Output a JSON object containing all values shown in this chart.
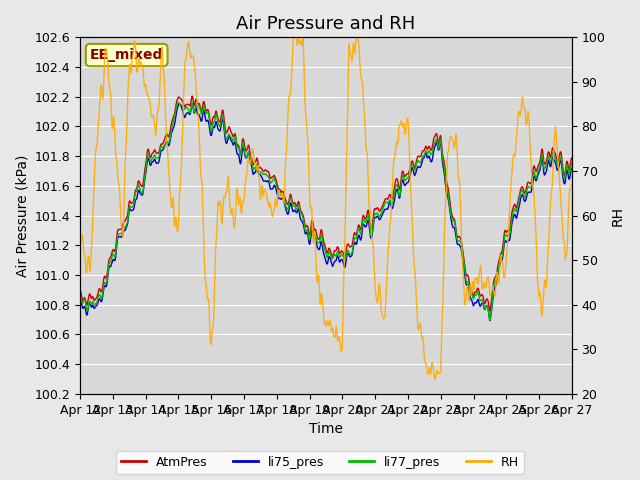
{
  "title": "Air Pressure and RH",
  "xlabel": "Time",
  "ylabel_left": "Air Pressure (kPa)",
  "ylabel_right": "RH",
  "annotation": "EE_mixed",
  "ylim_left": [
    100.2,
    102.6
  ],
  "ylim_right": [
    20,
    100
  ],
  "yticks_left": [
    100.2,
    100.4,
    100.6,
    100.8,
    101.0,
    101.2,
    101.4,
    101.6,
    101.8,
    102.0,
    102.2,
    102.4,
    102.6
  ],
  "yticks_right": [
    20,
    30,
    40,
    50,
    60,
    70,
    80,
    90,
    100
  ],
  "xticklabels": [
    "Apr 12",
    "Apr 13",
    "Apr 14",
    "Apr 15",
    "Apr 16",
    "Apr 17",
    "Apr 18",
    "Apr 19",
    "Apr 20",
    "Apr 21",
    "Apr 22",
    "Apr 23",
    "Apr 24",
    "Apr 25",
    "Apr 26",
    "Apr 27"
  ],
  "line_colors": {
    "AtmPres": "#cc0000",
    "li75_pres": "#0000cc",
    "li77_pres": "#00bb00",
    "RH": "#ffaa00"
  },
  "legend_labels": [
    "AtmPres",
    "li75_pres",
    "li77_pres",
    "RH"
  ],
  "bg_color": "#e8e8e8",
  "plot_bg_color": "#d8d8d8",
  "annotation_bg": "#ffffcc",
  "annotation_border": "#999900",
  "annotation_text_color": "#880000",
  "grid_color": "#ffffff",
  "title_fontsize": 13,
  "axis_fontsize": 10,
  "tick_fontsize": 9
}
